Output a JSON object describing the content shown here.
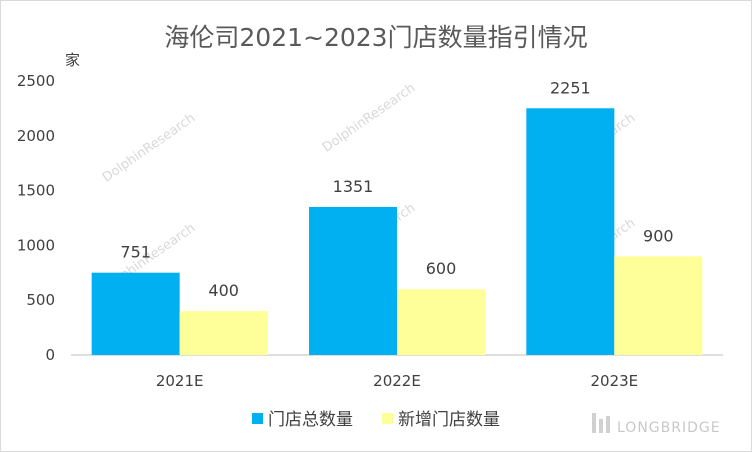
{
  "chart_data": {
    "type": "bar",
    "title": "海伦司2021~2023门店数量指引情况",
    "ylabel": "家",
    "xlabel": "",
    "ylim": [
      0,
      2500
    ],
    "yticks": [
      0,
      500,
      1000,
      1500,
      2000,
      2500
    ],
    "categories": [
      "2021E",
      "2022E",
      "2023E"
    ],
    "series": [
      {
        "name": "门店总数量",
        "values": [
          751,
          1351,
          2251
        ],
        "color": "#00b0f0"
      },
      {
        "name": "新增门店数量",
        "values": [
          400,
          600,
          900
        ],
        "color": "#ffff99"
      }
    ],
    "legend_position": "bottom",
    "grid": false
  },
  "watermark": {
    "text": "DolphinResearch"
  },
  "branding": {
    "text": "LONGBRIDGE"
  }
}
